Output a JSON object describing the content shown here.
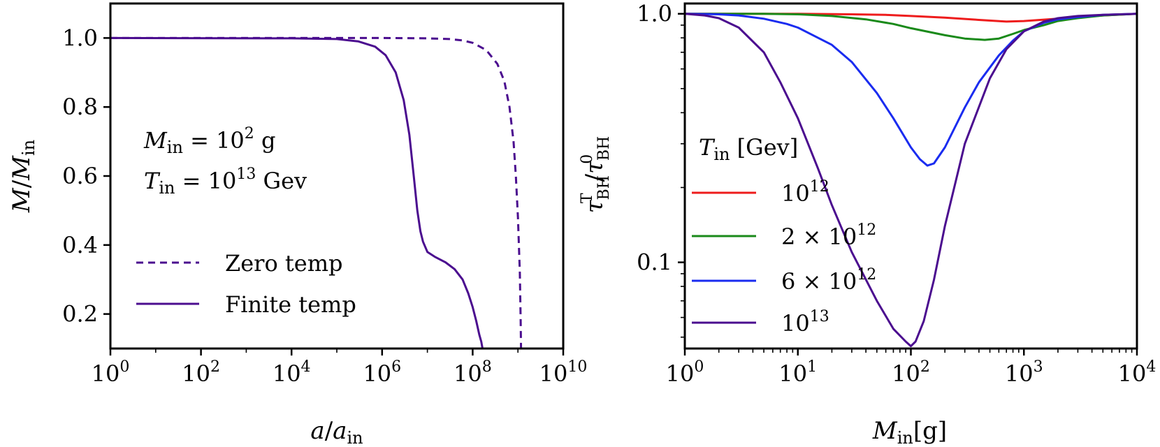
{
  "chart_data": [
    {
      "type": "line",
      "xscale": "log",
      "yscale": "linear",
      "xlim": [
        1,
        10000000000
      ],
      "ylim": [
        0.1,
        1.1
      ],
      "xlabel": {
        "main": "a",
        "sep": "/",
        "var": "a",
        "sub": "in"
      },
      "ylabel": {
        "main": "M",
        "sep": "/",
        "var": "M",
        "sub": "in"
      },
      "xticks": [
        {
          "value": 1,
          "base": "10",
          "exp": "0"
        },
        {
          "value": 100,
          "base": "10",
          "exp": "2"
        },
        {
          "value": 10000,
          "base": "10",
          "exp": "4"
        },
        {
          "value": 1000000,
          "base": "10",
          "exp": "6"
        },
        {
          "value": 100000000,
          "base": "10",
          "exp": "8"
        },
        {
          "value": 10000000000,
          "base": "10",
          "exp": "10"
        }
      ],
      "yticks": [
        {
          "value": 0.2,
          "label": "0.2"
        },
        {
          "value": 0.4,
          "label": "0.4"
        },
        {
          "value": 0.6,
          "label": "0.6"
        },
        {
          "value": 0.8,
          "label": "0.8"
        },
        {
          "value": 1.0,
          "label": "1.0"
        }
      ],
      "annotation": {
        "line1": {
          "var": "M",
          "sub": "in",
          "rel": " = 10",
          "exp": "2",
          "unit": " g"
        },
        "line2": {
          "var": "T",
          "sub": "in",
          "rel": " = 10",
          "exp": "13",
          "unit": " Gev"
        }
      },
      "legend_position": "lower-left",
      "series": [
        {
          "name": "Zero temp",
          "style": "dashed",
          "color": "#4b0d8f",
          "x": [
            1,
            10000,
            1000000,
            10000000,
            30000000,
            60000000,
            100000000,
            200000000,
            350000000,
            500000000,
            650000000,
            800000000,
            900000000,
            1000000000,
            1100000000,
            1150000000,
            1170000000
          ],
          "y": [
            1.0,
            1.0,
            1.0,
            0.999,
            0.997,
            0.993,
            0.986,
            0.965,
            0.925,
            0.875,
            0.8,
            0.7,
            0.6,
            0.48,
            0.32,
            0.18,
            0.1
          ]
        },
        {
          "name": "Finite temp",
          "style": "solid",
          "color": "#4b0d8f",
          "x": [
            1,
            10000,
            100000,
            300000,
            700000,
            1200000,
            2000000,
            3000000,
            4000000,
            5000000,
            6000000,
            7000000,
            8000000,
            10000000,
            15000000,
            25000000,
            40000000,
            60000000,
            80000000,
            100000000,
            120000000,
            140000000,
            155000000,
            165000000
          ],
          "y": [
            1.0,
            0.999,
            0.997,
            0.99,
            0.975,
            0.95,
            0.9,
            0.82,
            0.72,
            0.6,
            0.5,
            0.44,
            0.41,
            0.38,
            0.365,
            0.35,
            0.33,
            0.3,
            0.26,
            0.22,
            0.18,
            0.14,
            0.12,
            0.1
          ]
        }
      ]
    },
    {
      "type": "line",
      "xscale": "log",
      "yscale": "log",
      "xlim": [
        1,
        10000
      ],
      "ylim": [
        0.045,
        1.1
      ],
      "xlabel": {
        "var": "M",
        "sub": "in",
        "unit": "[g]"
      },
      "ylabel": {
        "num": "τ",
        "num_sub": "BH",
        "num_sup": "T",
        "sep": "/",
        "den": "τ",
        "den_sub": "BH",
        "den_sup": "0"
      },
      "xticks": [
        {
          "value": 1,
          "base": "10",
          "exp": "0"
        },
        {
          "value": 10,
          "base": "10",
          "exp": "1"
        },
        {
          "value": 100,
          "base": "10",
          "exp": "2"
        },
        {
          "value": 1000,
          "base": "10",
          "exp": "3"
        },
        {
          "value": 10000,
          "base": "10",
          "exp": "4"
        }
      ],
      "yticks": [
        {
          "value": 0.1,
          "label": "0.1"
        },
        {
          "value": 1.0,
          "label": "1.0"
        }
      ],
      "legend_title": {
        "var": "T",
        "sub": "in",
        "unit": " [Gev]"
      },
      "legend_position": "center-left",
      "series": [
        {
          "name": "10^12",
          "label": {
            "pre": "",
            "base": "10",
            "exp": "12"
          },
          "color": "#ee1c1c",
          "x": [
            1,
            10,
            30,
            60,
            100,
            200,
            400,
            700,
            1000,
            2000,
            5000,
            10000
          ],
          "y": [
            1.0,
            1.0,
            0.995,
            0.99,
            0.98,
            0.965,
            0.945,
            0.93,
            0.935,
            0.955,
            0.985,
            1.0
          ]
        },
        {
          "name": "2 × 10^12",
          "label": {
            "pre": "2 × ",
            "base": "10",
            "exp": "12"
          },
          "color": "#1a8a1a",
          "x": [
            1,
            5,
            10,
            20,
            40,
            70,
            100,
            200,
            300,
            450,
            600,
            800,
            1000,
            1500,
            2000,
            3000,
            5000,
            10000
          ],
          "y": [
            1.0,
            1.0,
            0.995,
            0.98,
            0.95,
            0.91,
            0.875,
            0.82,
            0.795,
            0.785,
            0.795,
            0.83,
            0.86,
            0.9,
            0.935,
            0.96,
            0.985,
            1.0
          ]
        },
        {
          "name": "6 × 10^12",
          "label": {
            "pre": "6 × ",
            "base": "10",
            "exp": "12"
          },
          "color": "#1a2cf0",
          "x": [
            1,
            2,
            3,
            5,
            8,
            10,
            20,
            30,
            50,
            70,
            100,
            120,
            140,
            160,
            200,
            300,
            400,
            600,
            800,
            1000,
            1500,
            2000,
            3000,
            5000,
            10000
          ],
          "y": [
            1.0,
            0.995,
            0.985,
            0.955,
            0.91,
            0.88,
            0.75,
            0.64,
            0.48,
            0.38,
            0.29,
            0.26,
            0.245,
            0.25,
            0.29,
            0.42,
            0.53,
            0.68,
            0.78,
            0.85,
            0.92,
            0.95,
            0.97,
            0.99,
            1.0
          ]
        },
        {
          "name": "10^13",
          "label": {
            "pre": "",
            "base": "10",
            "exp": "13"
          },
          "color": "#4b0d8f",
          "x": [
            1,
            1.5,
            2,
            3,
            5,
            7,
            10,
            15,
            20,
            30,
            50,
            70,
            90,
            100,
            110,
            130,
            160,
            200,
            300,
            500,
            700,
            1000,
            1500,
            2000,
            3000,
            5000,
            10000
          ],
          "y": [
            1.0,
            0.985,
            0.96,
            0.88,
            0.7,
            0.53,
            0.38,
            0.24,
            0.17,
            0.11,
            0.07,
            0.054,
            0.048,
            0.046,
            0.048,
            0.058,
            0.085,
            0.14,
            0.3,
            0.55,
            0.72,
            0.85,
            0.93,
            0.96,
            0.98,
            0.99,
            1.0
          ]
        }
      ]
    }
  ]
}
